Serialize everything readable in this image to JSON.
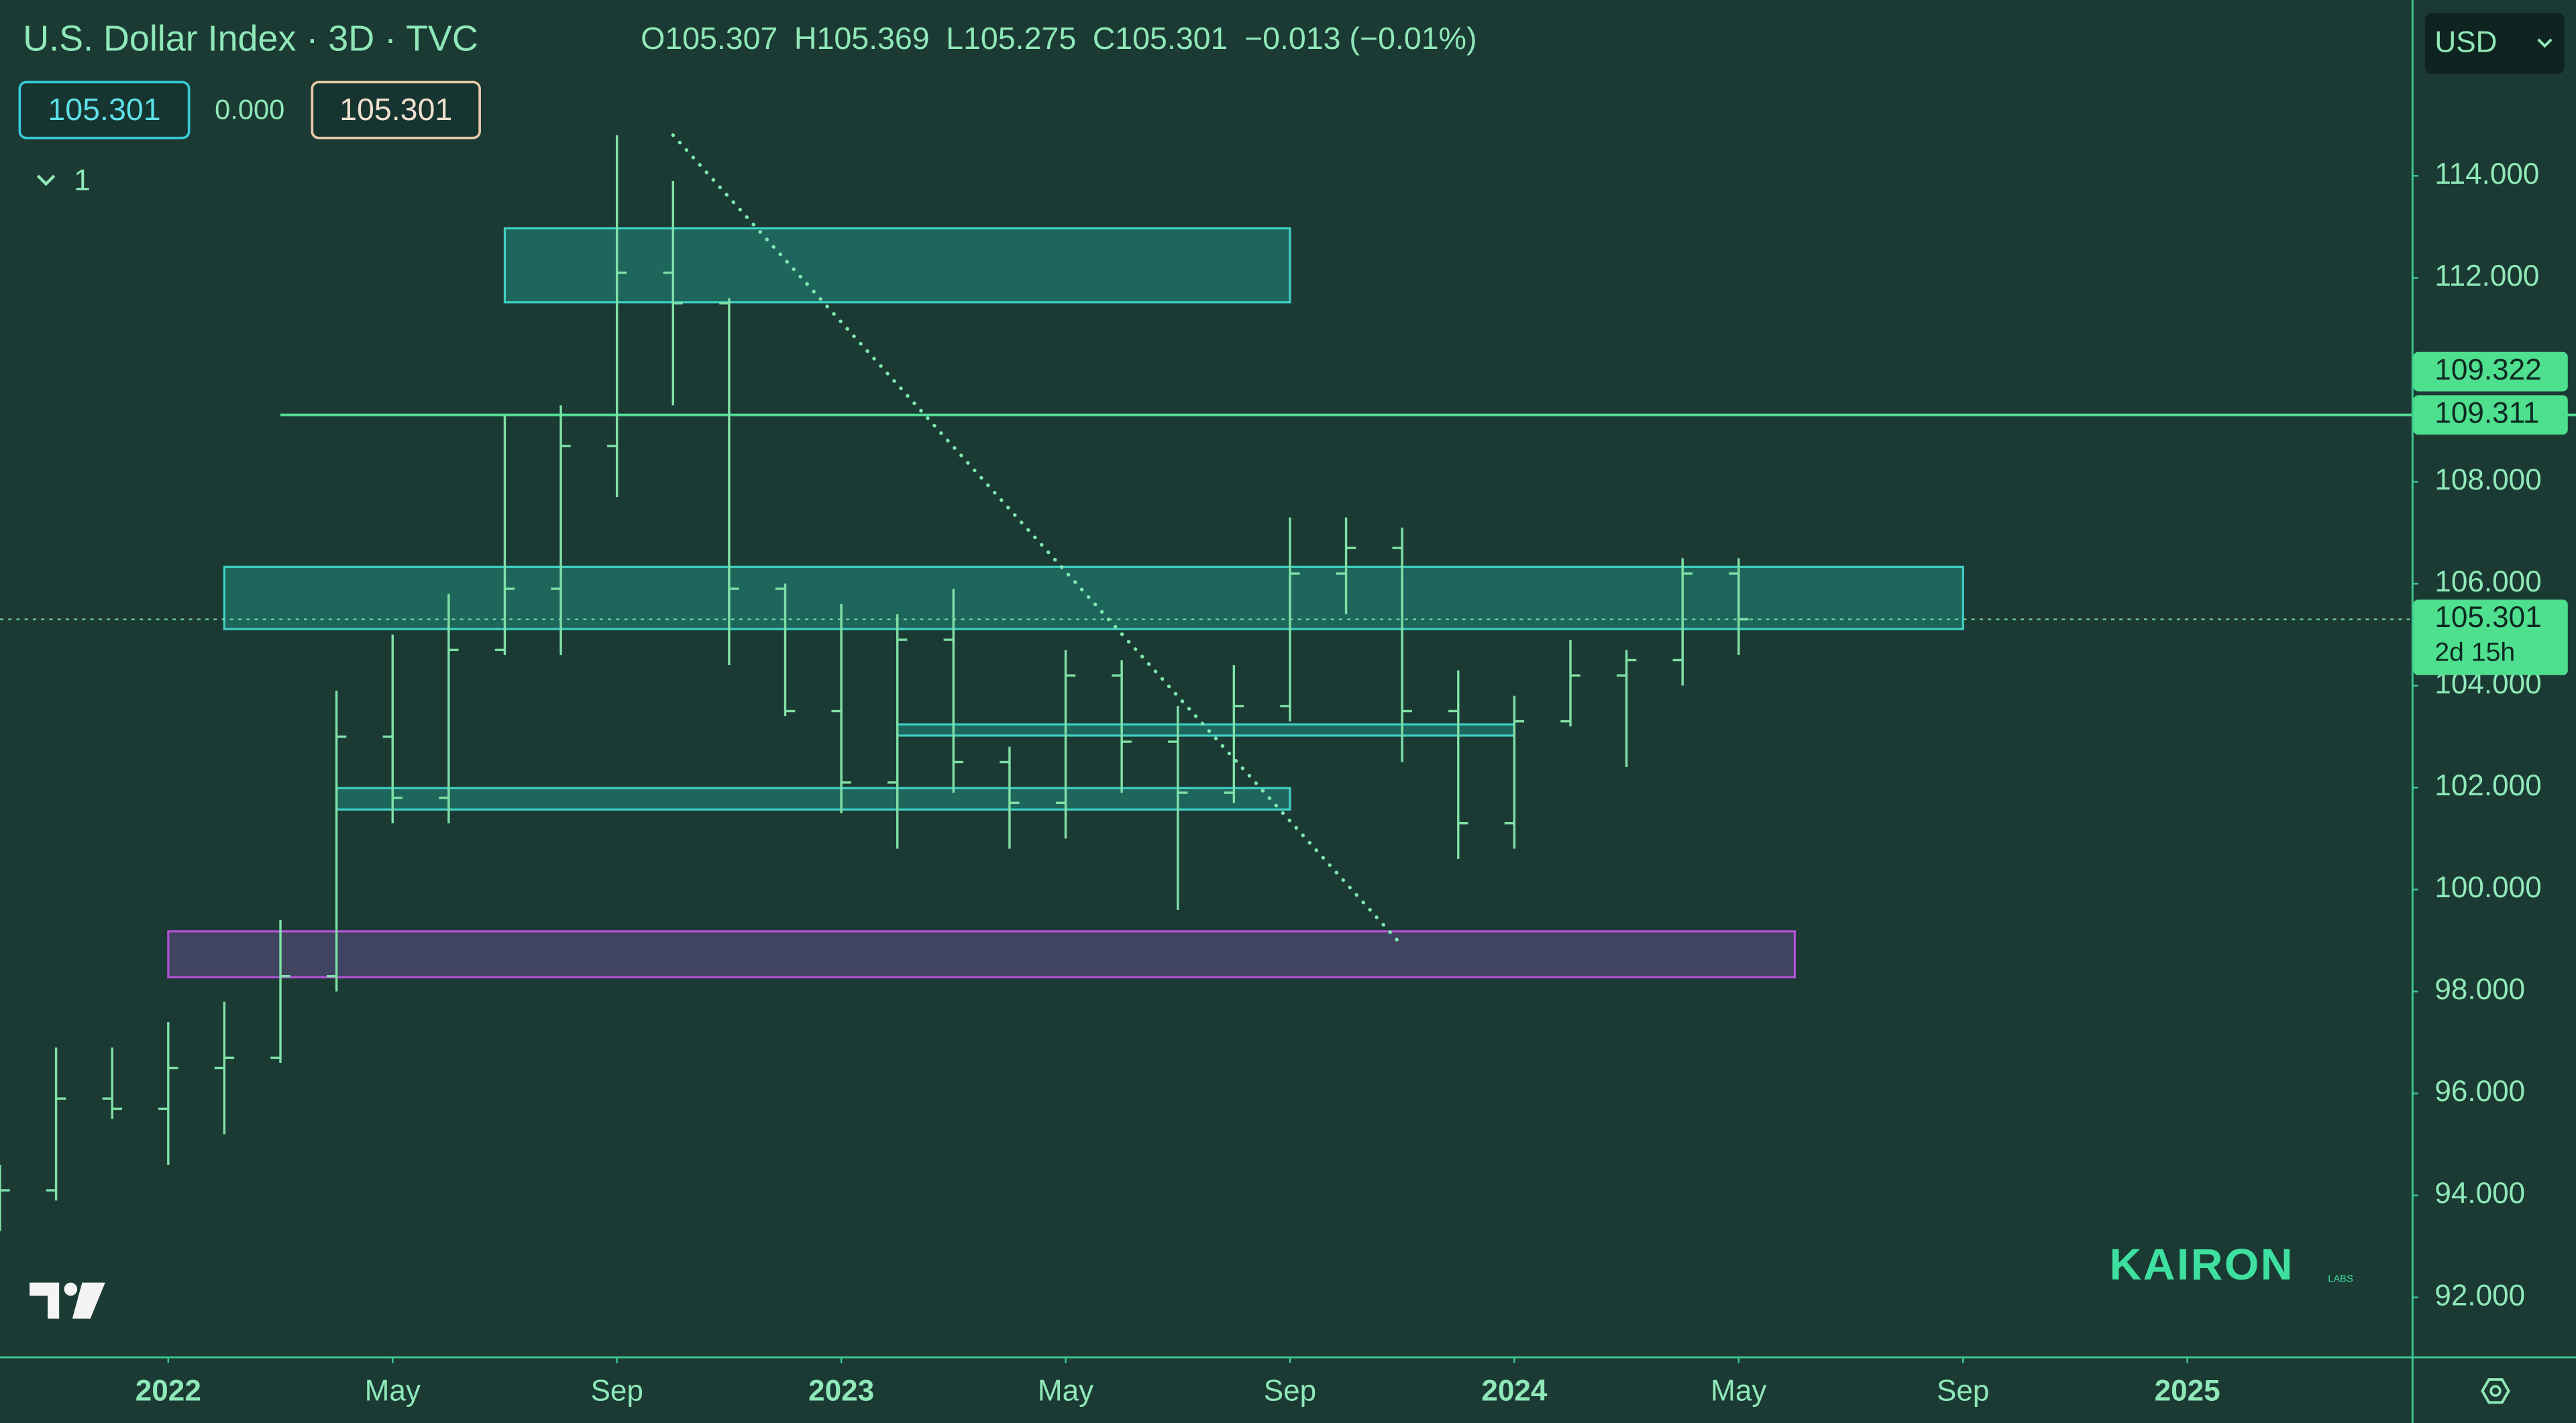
{
  "chart_data": {
    "type": "ohlc",
    "title": "U.S. Dollar Index · 3D · TVC",
    "header": [
      {
        "label": "O",
        "value": "105.307"
      },
      {
        "label": "H",
        "value": "105.369"
      },
      {
        "label": "L",
        "value": "105.275"
      },
      {
        "label": "C",
        "value": "105.301"
      }
    ],
    "change": "−0.013 (−0.01%)",
    "sell_price": "105.301",
    "spread": "0.000",
    "buy_price": "105.301",
    "indicator_count": "1",
    "currency": "USD",
    "watermark": "KAIRON",
    "watermark_sub": "LABS",
    "countdown": "2d 15h",
    "color": "#7fe0a6",
    "x": [
      "2021-10",
      "2021-11",
      "2021-12",
      "2022-01",
      "2022-02",
      "2022-03",
      "2022-04",
      "2022-05",
      "2022-06",
      "2022-07",
      "2022-08",
      "2022-09",
      "2022-10",
      "2022-11",
      "2022-12",
      "2023-01",
      "2023-02",
      "2023-03",
      "2023-04",
      "2023-05",
      "2023-06",
      "2023-07",
      "2023-08",
      "2023-09",
      "2023-10",
      "2023-11",
      "2023-12",
      "2024-01",
      "2024-02",
      "2024-03",
      "2024-04",
      "2024-05"
    ],
    "open": [
      94.2,
      94.1,
      95.9,
      95.7,
      96.5,
      96.7,
      98.3,
      103.0,
      101.8,
      104.7,
      105.9,
      108.7,
      112.1,
      111.5,
      105.9,
      103.5,
      102.1,
      104.9,
      102.5,
      101.7,
      104.2,
      102.9,
      101.9,
      103.6,
      106.2,
      106.7,
      103.5,
      101.3,
      103.3,
      104.2,
      104.5,
      106.2
    ],
    "high": [
      94.6,
      96.9,
      96.9,
      97.4,
      97.8,
      99.4,
      103.9,
      105.0,
      105.8,
      109.3,
      109.5,
      114.8,
      113.9,
      111.6,
      106.0,
      105.6,
      105.4,
      105.9,
      102.8,
      104.7,
      104.5,
      103.6,
      104.4,
      107.3,
      107.3,
      107.1,
      104.3,
      103.8,
      104.9,
      104.7,
      106.5,
      106.5
    ],
    "low": [
      93.3,
      93.9,
      95.5,
      94.6,
      95.2,
      96.6,
      98.0,
      101.3,
      101.3,
      104.6,
      104.6,
      107.7,
      109.5,
      104.4,
      103.4,
      101.5,
      100.8,
      101.9,
      100.8,
      101.0,
      101.9,
      99.6,
      101.7,
      103.3,
      105.4,
      102.5,
      100.6,
      100.8,
      103.2,
      102.4,
      104.0,
      104.6
    ],
    "close": [
      94.1,
      95.9,
      95.7,
      96.5,
      96.7,
      98.3,
      103.0,
      101.8,
      104.7,
      105.9,
      108.7,
      112.1,
      111.5,
      105.9,
      103.5,
      102.1,
      104.9,
      102.5,
      101.7,
      104.2,
      102.9,
      101.9,
      103.6,
      106.2,
      106.7,
      103.5,
      101.3,
      103.3,
      104.2,
      104.5,
      106.2,
      105.301
    ],
    "xlim": [
      "2021-10",
      "2025-05"
    ],
    "xticks": [
      {
        "value": "2022-01",
        "label": "2022"
      },
      {
        "value": "2022-05",
        "label": "May"
      },
      {
        "value": "2022-09",
        "label": "Sep"
      },
      {
        "value": "2023-01",
        "label": "2023"
      },
      {
        "value": "2023-05",
        "label": "May"
      },
      {
        "value": "2023-09",
        "label": "Sep"
      },
      {
        "value": "2024-01",
        "label": "2024"
      },
      {
        "value": "2024-05",
        "label": "May"
      },
      {
        "value": "2024-09",
        "label": "Sep"
      },
      {
        "value": "2025-01",
        "label": "2025"
      }
    ],
    "ylim": [
      90.84,
      117.45
    ],
    "yticks": [
      {
        "value": 92,
        "label": "92.000"
      },
      {
        "value": 94,
        "label": "94.000"
      },
      {
        "value": 96,
        "label": "96.000"
      },
      {
        "value": 98,
        "label": "98.000"
      },
      {
        "value": 100,
        "label": "100.000"
      },
      {
        "value": 102,
        "label": "102.000"
      },
      {
        "value": 104,
        "label": "104.000"
      },
      {
        "value": 106,
        "label": "106.000"
      },
      {
        "value": 108,
        "label": "108.000"
      },
      {
        "value": 112,
        "label": "112.000"
      },
      {
        "value": 114,
        "label": "114.000"
      }
    ],
    "last_price": {
      "value": 105.301,
      "label": "105.301"
    },
    "level_line": {
      "value": 109.311,
      "label": "109.311",
      "start": "2022-03"
    },
    "level_label_above": {
      "value": 109.322,
      "label": "109.322"
    },
    "zones": [
      {
        "start": "2022-07",
        "end": "2023-09",
        "top": 112.97,
        "bottom": 111.52,
        "color": "#1f6e64",
        "stroke": "#3fd0c4"
      },
      {
        "start": "2022-02",
        "end": "2024-09",
        "top": 106.33,
        "bottom": 105.11,
        "color": "#1f6e64",
        "stroke": "#3fd0c4"
      },
      {
        "start": "2023-02",
        "end": "2024-01",
        "top": 103.24,
        "bottom": 103.02,
        "color": "#1f6e64",
        "stroke": "#3fd0c4"
      },
      {
        "start": "2022-04",
        "end": "2023-09",
        "top": 101.99,
        "bottom": 101.57,
        "color": "#1f6e64",
        "stroke": "#3fd0c4"
      },
      {
        "start": "2022-01",
        "end": "2024-06",
        "top": 99.18,
        "bottom": 98.28,
        "color": "#474768",
        "stroke": "#b452d6"
      }
    ],
    "trendline": {
      "x": [
        "2022-10",
        "2023-11"
      ],
      "values": [
        114.8,
        98.9
      ]
    }
  }
}
